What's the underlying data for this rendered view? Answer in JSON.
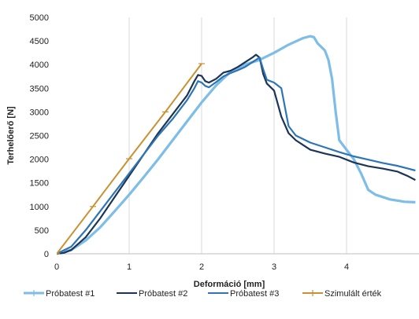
{
  "chart_data": {
    "type": "line",
    "title": "",
    "xlabel": "Deformáció [mm]",
    "ylabel": "Terhelőerő [N]",
    "xlim": [
      0,
      5
    ],
    "ylim": [
      0,
      5000
    ],
    "x_ticks": [
      0,
      1,
      2,
      3,
      4
    ],
    "y_ticks": [
      0,
      500,
      1000,
      1500,
      2000,
      2500,
      3000,
      3500,
      4000,
      4500,
      5000
    ],
    "grid": "vertical",
    "legend_position": "bottom",
    "series": [
      {
        "name": "Próbatest #1",
        "color": "#7dbde8",
        "marker": "dash",
        "points": [
          [
            0,
            0
          ],
          [
            0.2,
            80
          ],
          [
            0.4,
            280
          ],
          [
            0.6,
            560
          ],
          [
            0.8,
            900
          ],
          [
            1.0,
            1250
          ],
          [
            1.2,
            1620
          ],
          [
            1.4,
            2000
          ],
          [
            1.6,
            2400
          ],
          [
            1.8,
            2800
          ],
          [
            2.0,
            3200
          ],
          [
            2.2,
            3560
          ],
          [
            2.4,
            3850
          ],
          [
            2.6,
            4000
          ],
          [
            2.8,
            4100
          ],
          [
            3.0,
            4250
          ],
          [
            3.2,
            4420
          ],
          [
            3.4,
            4560
          ],
          [
            3.5,
            4600
          ],
          [
            3.55,
            4580
          ],
          [
            3.6,
            4450
          ],
          [
            3.7,
            4300
          ],
          [
            3.75,
            4100
          ],
          [
            3.8,
            3700
          ],
          [
            3.85,
            3000
          ],
          [
            3.9,
            2400
          ],
          [
            4.0,
            2200
          ],
          [
            4.1,
            2000
          ],
          [
            4.2,
            1700
          ],
          [
            4.3,
            1350
          ],
          [
            4.4,
            1250
          ],
          [
            4.6,
            1150
          ],
          [
            4.8,
            1100
          ],
          [
            4.95,
            1090
          ]
        ]
      },
      {
        "name": "Próbatest #2",
        "color": "#1c3557",
        "marker": "none",
        "points": [
          [
            0,
            0
          ],
          [
            0.1,
            20
          ],
          [
            0.2,
            80
          ],
          [
            0.4,
            350
          ],
          [
            0.6,
            750
          ],
          [
            0.8,
            1200
          ],
          [
            1.0,
            1650
          ],
          [
            1.2,
            2100
          ],
          [
            1.4,
            2550
          ],
          [
            1.6,
            2950
          ],
          [
            1.8,
            3350
          ],
          [
            1.9,
            3650
          ],
          [
            1.95,
            3780
          ],
          [
            2.0,
            3760
          ],
          [
            2.05,
            3650
          ],
          [
            2.1,
            3620
          ],
          [
            2.2,
            3700
          ],
          [
            2.3,
            3830
          ],
          [
            2.4,
            3870
          ],
          [
            2.5,
            3950
          ],
          [
            2.6,
            4050
          ],
          [
            2.7,
            4150
          ],
          [
            2.75,
            4210
          ],
          [
            2.8,
            4150
          ],
          [
            2.85,
            3800
          ],
          [
            2.9,
            3600
          ],
          [
            3.0,
            3450
          ],
          [
            3.1,
            2900
          ],
          [
            3.2,
            2550
          ],
          [
            3.3,
            2400
          ],
          [
            3.5,
            2200
          ],
          [
            3.7,
            2120
          ],
          [
            3.9,
            2050
          ],
          [
            4.1,
            1930
          ],
          [
            4.3,
            1850
          ],
          [
            4.5,
            1800
          ],
          [
            4.7,
            1740
          ],
          [
            4.85,
            1640
          ],
          [
            4.95,
            1560
          ]
        ]
      },
      {
        "name": "Próbatest #3",
        "color": "#2e75b6",
        "marker": "none",
        "points": [
          [
            0,
            0
          ],
          [
            0.2,
            150
          ],
          [
            0.4,
            500
          ],
          [
            0.6,
            900
          ],
          [
            0.8,
            1300
          ],
          [
            1.0,
            1700
          ],
          [
            1.2,
            2100
          ],
          [
            1.4,
            2500
          ],
          [
            1.6,
            2850
          ],
          [
            1.8,
            3250
          ],
          [
            1.9,
            3500
          ],
          [
            1.95,
            3650
          ],
          [
            2.0,
            3620
          ],
          [
            2.05,
            3550
          ],
          [
            2.1,
            3520
          ],
          [
            2.2,
            3630
          ],
          [
            2.3,
            3750
          ],
          [
            2.4,
            3820
          ],
          [
            2.5,
            3880
          ],
          [
            2.6,
            3950
          ],
          [
            2.7,
            4050
          ],
          [
            2.8,
            4150
          ],
          [
            2.85,
            3900
          ],
          [
            2.9,
            3680
          ],
          [
            3.0,
            3620
          ],
          [
            3.1,
            3500
          ],
          [
            3.15,
            3100
          ],
          [
            3.2,
            2700
          ],
          [
            3.3,
            2500
          ],
          [
            3.5,
            2350
          ],
          [
            3.7,
            2250
          ],
          [
            3.9,
            2150
          ],
          [
            4.1,
            2060
          ],
          [
            4.3,
            1990
          ],
          [
            4.5,
            1920
          ],
          [
            4.7,
            1860
          ],
          [
            4.85,
            1800
          ],
          [
            4.95,
            1760
          ]
        ]
      },
      {
        "name": "Szimulált érték",
        "color": "#c89232",
        "marker": "cross",
        "points": [
          [
            0,
            0
          ],
          [
            0.5,
            1000
          ],
          [
            1.0,
            2010
          ],
          [
            1.5,
            3000
          ],
          [
            2.0,
            4020
          ]
        ]
      }
    ]
  }
}
